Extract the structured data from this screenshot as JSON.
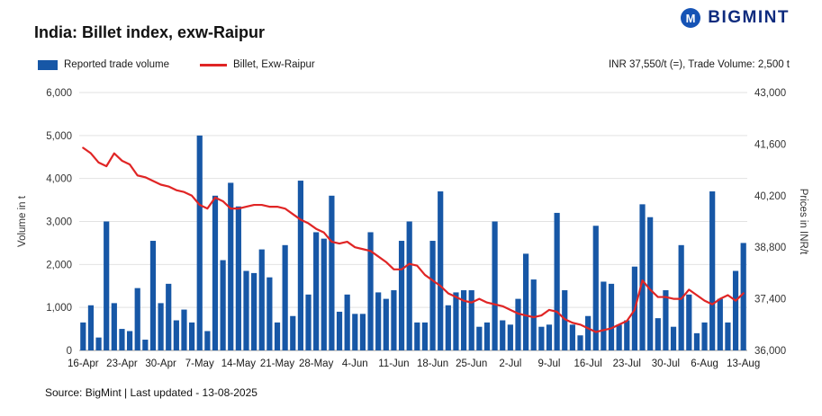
{
  "header": {
    "title": "India: Billet index, exw-Raipur",
    "brand": "BIGMINT",
    "brand_icon_letter": "M",
    "brand_icon_color": "#1553B5",
    "brand_text_color": "#0E2B7E",
    "price_info": "INR 37,550/t (=), Trade Volume: 2,500 t"
  },
  "legend": [
    {
      "label": "Reported trade volume",
      "type": "bar",
      "color": "#1757A6"
    },
    {
      "label": "Billet, Exw-Raipur",
      "type": "line",
      "color": "#E02525"
    }
  ],
  "footer": {
    "source": "Source: BigMint | Last updated - 13-08-2025"
  },
  "chart_data": {
    "type": "bar+line",
    "title": "India: Billet index, exw-Raipur",
    "grid": "horizontal",
    "x_tick_labels": [
      "16-Apr",
      "23-Apr",
      "30-Apr",
      "7-May",
      "14-May",
      "21-May",
      "28-May",
      "4-Jun",
      "11-Jun",
      "18-Jun",
      "25-Jun",
      "2-Jul",
      "9-Jul",
      "16-Jul",
      "23-Jul",
      "30-Jul",
      "6-Aug",
      "13-Aug"
    ],
    "x_tick_interval": 5,
    "left_axis": {
      "label": "Volume in t",
      "min": 0,
      "max": 6000,
      "ticks": [
        0,
        1000,
        2000,
        3000,
        4000,
        5000,
        6000
      ]
    },
    "right_axis": {
      "label": "Prices in INR/t",
      "min": 36000,
      "max": 43000,
      "ticks": [
        36000,
        37400,
        38800,
        40200,
        41600,
        43000
      ]
    },
    "series": [
      {
        "name": "Reported trade volume",
        "type": "bar",
        "axis": "left",
        "color": "#1757A6",
        "values": [
          650,
          1050,
          300,
          3000,
          1100,
          500,
          450,
          1450,
          250,
          2550,
          1100,
          1550,
          700,
          950,
          650,
          5000,
          450,
          3600,
          2100,
          3900,
          3350,
          1850,
          1800,
          2350,
          1700,
          650,
          2450,
          800,
          3950,
          1300,
          2750,
          2600,
          3600,
          900,
          1300,
          850,
          850,
          2750,
          1350,
          1200,
          1400,
          2550,
          3000,
          650,
          650,
          2550,
          3700,
          1050,
          1350,
          1400,
          1400,
          550,
          650,
          3000,
          700,
          600,
          1200,
          2250,
          1650,
          550,
          600,
          3200,
          1400,
          600,
          350,
          800,
          2900,
          1600,
          1550,
          600,
          700,
          1950,
          3400,
          3100,
          750,
          1400,
          550,
          2450,
          1300,
          400,
          650,
          3700,
          1200,
          650,
          1850,
          2500
        ]
      },
      {
        "name": "Billet, Exw-Raipur",
        "type": "line",
        "axis": "right",
        "color": "#E02525",
        "values": [
          41500,
          41350,
          41100,
          41000,
          41350,
          41150,
          41050,
          40750,
          40700,
          40600,
          40500,
          40450,
          40350,
          40300,
          40200,
          39950,
          39850,
          40150,
          40050,
          39850,
          39850,
          39900,
          39950,
          39950,
          39900,
          39900,
          39850,
          39700,
          39550,
          39450,
          39300,
          39200,
          38950,
          38900,
          38950,
          38800,
          38750,
          38700,
          38550,
          38400,
          38200,
          38200,
          38350,
          38300,
          38050,
          37900,
          37750,
          37550,
          37450,
          37350,
          37300,
          37400,
          37300,
          37250,
          37200,
          37100,
          37000,
          36950,
          36900,
          36950,
          37100,
          37050,
          36850,
          36750,
          36700,
          36600,
          36500,
          36550,
          36600,
          36700,
          36800,
          37100,
          37900,
          37650,
          37450,
          37450,
          37400,
          37400,
          37650,
          37500,
          37350,
          37250,
          37400,
          37500,
          37350,
          37550
        ]
      }
    ]
  }
}
